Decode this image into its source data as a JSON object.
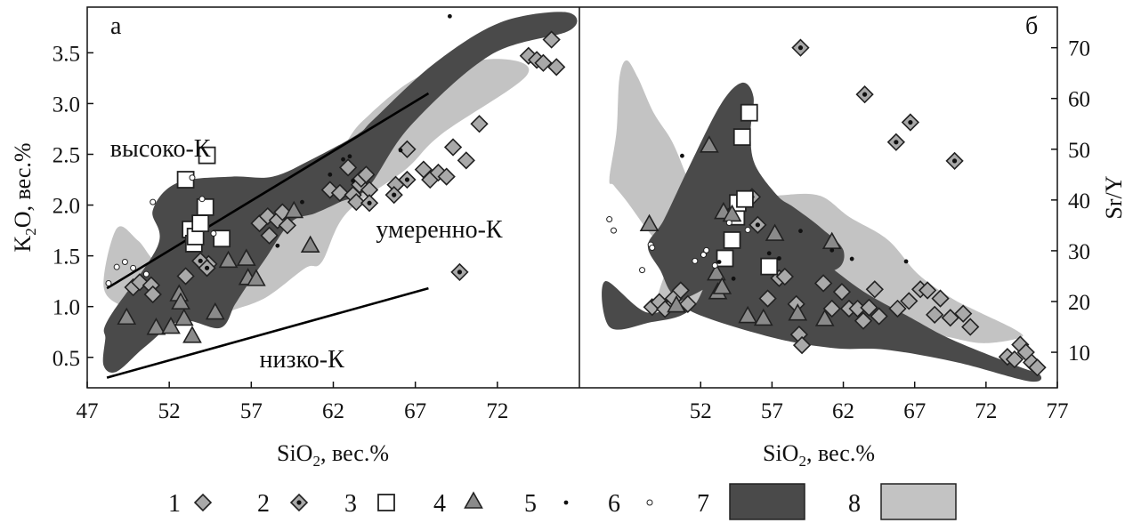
{
  "colors": {
    "field_dark": "#4a4a4a",
    "field_light": "#c3c3c3",
    "marker_fill": "#a9a9a9",
    "marker_stroke": "#222222",
    "marker_dark_dot": "#111111",
    "open_fill": "#ffffff"
  },
  "icons": {
    "1": "diamond-grey",
    "2": "diamond-dotted",
    "3": "open-square",
    "4": "grey-triangle",
    "5": "small-black-dot",
    "6": "small-open-circle",
    "7": "dark-field-swatch",
    "8": "light-field-swatch"
  },
  "legend": [
    {
      "num": "1",
      "symbol": "diamond"
    },
    {
      "num": "2",
      "symbol": "diamond2"
    },
    {
      "num": "3",
      "symbol": "square"
    },
    {
      "num": "4",
      "symbol": "triangle"
    },
    {
      "num": "5",
      "symbol": "dot"
    },
    {
      "num": "6",
      "symbol": "circle"
    },
    {
      "num": "7",
      "symbol": "field7"
    },
    {
      "num": "8",
      "symbol": "field8"
    }
  ],
  "chart_data": [
    {
      "type": "scatter",
      "panel": "а",
      "xlabel": "SiO",
      "xlabel_sub": "2",
      "xlabel_tail": ", вес.%",
      "ylabel": "K",
      "ylabel_sub": "2",
      "ylabel_tail": "O, вес.%",
      "xlim": [
        47,
        77
      ],
      "ylim": [
        0.2,
        3.95
      ],
      "x_ticks": [
        47,
        52,
        57,
        62,
        67,
        72
      ],
      "y_ticks": [
        0.5,
        1.0,
        1.5,
        2.0,
        2.5,
        3.0,
        3.5
      ],
      "y_tick_labels": [
        "0.5",
        "1.0",
        "1.5",
        "2.0",
        "2.5",
        "3.0",
        "3.5"
      ],
      "annotations": [
        {
          "text": "высоко-К",
          "x": 48.4,
          "y": 2.48
        },
        {
          "text": "умеренно-К",
          "x": 64.6,
          "y": 1.68
        },
        {
          "text": "низко-К",
          "x": 57.5,
          "y": 0.4
        }
      ],
      "lines": [
        {
          "x": [
            48.2,
            67.8
          ],
          "y": [
            1.18,
            3.1
          ]
        },
        {
          "x": [
            48.2,
            67.8
          ],
          "y": [
            0.3,
            1.18
          ]
        }
      ],
      "fields": [
        {
          "id": "7",
          "points": [
            [
              48.3,
              0.88
            ],
            [
              51.3,
              1.6
            ],
            [
              51.0,
              1.95
            ],
            [
              52.5,
              2.22
            ],
            [
              55.8,
              2.28
            ],
            [
              58.3,
              2.28
            ],
            [
              60.8,
              2.46
            ],
            [
              63.5,
              2.7
            ],
            [
              64.5,
              2.85
            ],
            [
              68.2,
              3.4
            ],
            [
              72.2,
              3.8
            ],
            [
              76.2,
              3.9
            ],
            [
              76.4,
              3.72
            ],
            [
              71.6,
              3.48
            ],
            [
              66.7,
              2.78
            ],
            [
              64.1,
              2.17
            ],
            [
              62.4,
              2.03
            ],
            [
              60.9,
              1.92
            ],
            [
              59.4,
              1.83
            ],
            [
              57.9,
              1.48
            ],
            [
              56.8,
              1.22
            ],
            [
              56.0,
              1.02
            ],
            [
              55.1,
              0.79
            ],
            [
              52.7,
              0.86
            ],
            [
              50.5,
              0.6
            ],
            [
              48.8,
              0.36
            ],
            [
              48.0,
              0.42
            ],
            [
              48.1,
              0.68
            ]
          ]
        },
        {
          "id": "8",
          "points": [
            [
              48.0,
              1.2
            ],
            [
              48.8,
              1.77
            ],
            [
              50.1,
              1.65
            ],
            [
              51.4,
              1.44
            ],
            [
              53.1,
              1.73
            ],
            [
              54.9,
              1.88
            ],
            [
              56.3,
              1.98
            ],
            [
              57.7,
              2.02
            ],
            [
              58.8,
              2.1
            ],
            [
              62.1,
              2.48
            ],
            [
              63.8,
              2.83
            ],
            [
              67.4,
              3.28
            ],
            [
              71.9,
              3.44
            ],
            [
              73.8,
              3.28
            ],
            [
              68.6,
              2.7
            ],
            [
              66.4,
              2.35
            ],
            [
              62.8,
              1.92
            ],
            [
              61.3,
              1.44
            ],
            [
              60.3,
              1.38
            ],
            [
              57.9,
              1.09
            ],
            [
              55.8,
              0.96
            ],
            [
              54.9,
              0.9
            ],
            [
              51.9,
              0.92
            ],
            [
              50.6,
              0.98
            ],
            [
              49.2,
              1.0
            ]
          ]
        }
      ],
      "series": [
        {
          "symbol": "1",
          "x": [
            49.8,
            50.2,
            50.9,
            51.0,
            53.0,
            54.4,
            57.5,
            58.0,
            58.1,
            58.6,
            58.9,
            59.2,
            61.8,
            62.4,
            62.9,
            63.2,
            63.4,
            63.6,
            63.7,
            64.0,
            64.2,
            65.8,
            66.5,
            67.5,
            67.9,
            68.4,
            68.9,
            69.3,
            70.1,
            70.9,
            73.9,
            74.4,
            74.8,
            75.3,
            75.6
          ],
          "y": [
            1.19,
            1.24,
            1.21,
            1.12,
            1.3,
            1.42,
            1.82,
            1.89,
            1.7,
            1.85,
            1.93,
            1.8,
            2.15,
            2.12,
            2.37,
            2.1,
            2.03,
            2.2,
            2.26,
            2.3,
            2.15,
            2.2,
            2.55,
            2.35,
            2.25,
            2.32,
            2.28,
            2.57,
            2.44,
            2.8,
            3.47,
            3.43,
            3.4,
            3.63,
            3.36
          ]
        },
        {
          "symbol": "2",
          "x": [
            53.9,
            54.3,
            64.2,
            65.7,
            66.5,
            69.7
          ],
          "y": [
            1.45,
            1.38,
            2.02,
            2.1,
            2.25,
            1.34
          ]
        },
        {
          "symbol": "3",
          "x": [
            53.0,
            53.3,
            53.5,
            53.6,
            53.9,
            54.2,
            54.3,
            55.2
          ],
          "y": [
            2.25,
            1.76,
            1.62,
            1.69,
            1.82,
            1.98,
            2.49,
            1.67
          ]
        },
        {
          "symbol": "4",
          "x": [
            49.4,
            51.2,
            52.1,
            52.6,
            52.7,
            52.9,
            53.4,
            54.8,
            55.6,
            56.7,
            56.8,
            57.3,
            59.6,
            60.6
          ],
          "y": [
            0.89,
            0.79,
            0.8,
            1.12,
            1.04,
            0.88,
            0.71,
            0.94,
            1.45,
            1.47,
            1.28,
            1.27,
            1.94,
            1.6
          ]
        },
        {
          "symbol": "5",
          "x": [
            58.6,
            60.1,
            61.8,
            62.6,
            63.0,
            63.2,
            66.1,
            69.1
          ],
          "y": [
            1.6,
            2.03,
            2.3,
            2.45,
            2.48,
            2.24,
            2.54,
            3.86
          ]
        },
        {
          "symbol": "6",
          "x": [
            48.3,
            48.8,
            49.3,
            49.8,
            50.6,
            51.0,
            53.4,
            54.0,
            54.7
          ],
          "y": [
            1.23,
            1.39,
            1.44,
            1.38,
            1.32,
            2.03,
            2.27,
            2.06,
            1.72
          ]
        }
      ]
    },
    {
      "type": "scatter",
      "panel": "б",
      "xlabel": "SiO",
      "xlabel_sub": "2",
      "xlabel_tail": ", вес.%",
      "ylabel": "Sr/Y",
      "xlim": [
        43.5,
        77
      ],
      "ylim": [
        3,
        78
      ],
      "x_ticks": [
        52,
        57,
        62,
        67,
        72,
        77
      ],
      "y_ticks": [
        10,
        20,
        30,
        40,
        50,
        60,
        70
      ],
      "fields": [
        {
          "id": "7",
          "points": [
            [
              45.3,
              24
            ],
            [
              45.6,
              15
            ],
            [
              48.3,
              15.8
            ],
            [
              51.5,
              19
            ],
            [
              53.4,
              32
            ],
            [
              55.2,
              36
            ],
            [
              56.3,
              36
            ],
            [
              57.8,
              33
            ],
            [
              60.5,
              28
            ],
            [
              63.4,
              22
            ],
            [
              66.6,
              17
            ],
            [
              69.6,
              12.5
            ],
            [
              74.0,
              7.5
            ],
            [
              75.8,
              5.5
            ],
            [
              75.0,
              4.3
            ],
            [
              70.0,
              8
            ],
            [
              65.0,
              10.5
            ],
            [
              61.4,
              10.8
            ],
            [
              57.2,
              12.8
            ],
            [
              51.7,
              17.6
            ],
            [
              50.0,
              21.5
            ],
            [
              49.2,
              26
            ],
            [
              48.3,
              31
            ],
            [
              49.4,
              36
            ],
            [
              51.1,
              46
            ],
            [
              53.4,
              58.8
            ],
            [
              54.9,
              63.1
            ],
            [
              55.7,
              60.3
            ],
            [
              55.5,
              53.4
            ],
            [
              55.8,
              47
            ],
            [
              57.4,
              40.8
            ],
            [
              58.5,
              38.6
            ],
            [
              60.4,
              34.6
            ],
            [
              62.0,
              30.1
            ],
            [
              61.4,
              26.2
            ],
            [
              58.3,
              26.4
            ],
            [
              55.7,
              25.9
            ],
            [
              53.6,
              24.4
            ],
            [
              51.1,
              20.8
            ],
            [
              48.3,
              17.8
            ]
          ]
        },
        {
          "id": "8",
          "points": [
            [
              45.6,
              44.2
            ],
            [
              46.1,
              53.5
            ],
            [
              46.3,
              63.9
            ],
            [
              46.8,
              67.5
            ],
            [
              47.6,
              64.1
            ],
            [
              48.7,
              57.2
            ],
            [
              50.0,
              51.5
            ],
            [
              51.1,
              44.2
            ],
            [
              52.1,
              38.3
            ],
            [
              53.3,
              34.6
            ],
            [
              54.5,
              33.2
            ],
            [
              55.7,
              33.0
            ],
            [
              56.9,
              39.8
            ],
            [
              58.0,
              41.0
            ],
            [
              60.4,
              40.8
            ],
            [
              62.4,
              36.7
            ],
            [
              65.1,
              32.2
            ],
            [
              67.2,
              25.5
            ],
            [
              69.5,
              20.8
            ],
            [
              71.3,
              18.2
            ],
            [
              74.2,
              14.2
            ],
            [
              74.3,
              12.8
            ],
            [
              71.7,
              11.8
            ],
            [
              68.8,
              13.2
            ],
            [
              65.1,
              13.7
            ],
            [
              61.3,
              12.9
            ],
            [
              58.5,
              13.1
            ],
            [
              55.8,
              14.8
            ],
            [
              53.6,
              16.9
            ],
            [
              51.3,
              18.2
            ],
            [
              49.3,
              17.3
            ],
            [
              49.0,
              20.9
            ],
            [
              49.5,
              26.4
            ],
            [
              49.0,
              31.2
            ],
            [
              48.1,
              34.7
            ],
            [
              46.8,
              39.8
            ],
            [
              45.9,
              42.9
            ]
          ]
        }
      ],
      "series": [
        {
          "symbol": "1",
          "x": [
            48.6,
            49.1,
            49.5,
            50.1,
            50.6,
            51.1,
            56.7,
            57.5,
            57.9,
            58.7,
            58.9,
            59.1,
            60.6,
            61.2,
            61.9,
            62.4,
            63.0,
            63.4,
            63.8,
            64.2,
            64.5,
            65.8,
            66.6,
            67.4,
            67.9,
            68.4,
            68.8,
            69.5,
            70.4,
            70.9,
            73.5,
            74.0,
            74.4,
            74.8,
            75.2,
            75.6
          ],
          "y": [
            18.9,
            19.9,
            18.5,
            20.6,
            22.2,
            19.5,
            20.6,
            24.6,
            24.9,
            19.5,
            13.5,
            11.4,
            23.6,
            18.6,
            21.9,
            18.6,
            18.6,
            16.2,
            18.8,
            22.4,
            17.1,
            18.6,
            20.1,
            22.4,
            22.2,
            17.4,
            20.6,
            16.8,
            17.6,
            15.0,
            9.1,
            8.6,
            11.5,
            10.0,
            8.0,
            7.0
          ]
        },
        {
          "symbol": "2",
          "x": [
            55.6,
            56.0,
            59.0,
            63.5,
            65.7,
            66.7,
            69.8
          ],
          "y": [
            40.6,
            35.1,
            70.0,
            60.8,
            51.4,
            55.3,
            47.7
          ]
        },
        {
          "symbol": "3",
          "x": [
            53.7,
            54.2,
            54.5,
            54.6,
            54.9,
            55.1,
            55.4,
            56.8
          ],
          "y": [
            28.5,
            32.1,
            36.7,
            39.4,
            52.4,
            40.2,
            57.2,
            26.9
          ]
        },
        {
          "symbol": "4",
          "x": [
            48.4,
            50.3,
            52.6,
            53.1,
            53.2,
            53.5,
            53.6,
            54.2,
            55.3,
            56.4,
            57.2,
            58.8,
            60.7,
            61.2
          ],
          "y": [
            35.2,
            19.2,
            50.7,
            25.5,
            21.8,
            22.8,
            37.6,
            37.1,
            17.1,
            16.6,
            33.3,
            17.6,
            16.5,
            31.7
          ]
        },
        {
          "symbol": "5",
          "x": [
            50.7,
            53.3,
            54.3,
            56.8,
            57.5,
            59.0,
            61.2,
            62.6,
            66.4
          ],
          "y": [
            48.7,
            27.8,
            24.5,
            29.5,
            28.5,
            33.9,
            30.1,
            28.4,
            27.9
          ]
        },
        {
          "symbol": "6",
          "x": [
            45.6,
            45.9,
            47.9,
            48.5,
            48.6,
            51.6,
            52.2,
            52.4,
            53.0,
            54.0,
            55.3
          ],
          "y": [
            36.2,
            34.0,
            26.2,
            31.2,
            30.6,
            28.0,
            29.2,
            30.1,
            27.1,
            35.5,
            34.1
          ]
        }
      ]
    }
  ]
}
